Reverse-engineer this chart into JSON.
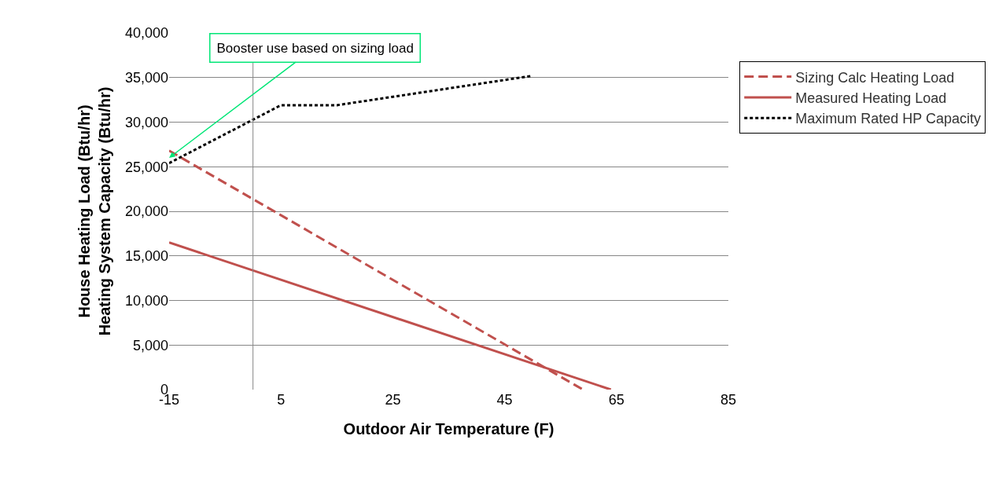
{
  "chart_data": {
    "type": "line",
    "xlabel": "Outdoor Air Temperature (F)",
    "ylabel": "House Heating Load (Btu/hr)\nHeating System Capacity (Btu/hr)",
    "xlim": [
      -15,
      85
    ],
    "xticks": [
      -15,
      5,
      25,
      45,
      65,
      85
    ],
    "ylim": [
      0,
      40000
    ],
    "yticks": [
      {
        "value": 0,
        "label": "0"
      },
      {
        "value": 5000,
        "label": "5,000"
      },
      {
        "value": 10000,
        "label": "10,000"
      },
      {
        "value": 15000,
        "label": "15,000"
      },
      {
        "value": 20000,
        "label": "20,000"
      },
      {
        "value": 25000,
        "label": "25,000"
      },
      {
        "value": 30000,
        "label": "30,000"
      },
      {
        "value": 35000,
        "label": "35,000"
      },
      {
        "value": 40000,
        "label": "40,000"
      }
    ],
    "grid": "y",
    "legend": "right",
    "marker": "none",
    "series": [
      {
        "name": "Sizing Calc Heating Load",
        "color": "#c0504d",
        "line_style": "dashed",
        "x": [
          -15,
          59
        ],
        "values": [
          26800,
          0
        ]
      },
      {
        "name": "Measured Heating Load",
        "color": "#c0504d",
        "line_style": "solid",
        "x": [
          -15,
          64
        ],
        "values": [
          16500,
          0
        ]
      },
      {
        "name": "Maximum Rated HP Capacity",
        "color": "#000000",
        "line_style": "dotted",
        "x": [
          -15,
          5,
          15,
          50
        ],
        "values": [
          25400,
          31900,
          31900,
          35200
        ]
      }
    ],
    "ref_lines": [
      {
        "axis": "x",
        "value": 0,
        "color": "#868686"
      }
    ],
    "annotations": [
      {
        "text": "Booster use based on sizing load",
        "x": -15,
        "y": 26000
      }
    ]
  }
}
